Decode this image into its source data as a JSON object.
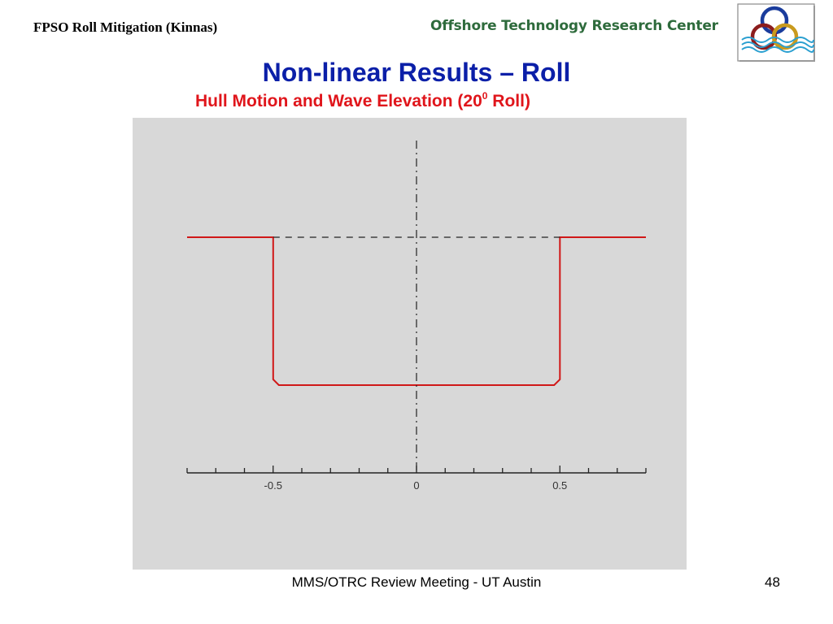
{
  "header": {
    "left_title": "FPSO Roll Mitigation (Kinnas)",
    "org_name": "Offshore Technology Research Center"
  },
  "slide": {
    "title": "Non-linear Results – Roll",
    "subtitle_pre": "Hull Motion and Wave Elevation (20",
    "subtitle_sup": "0",
    "subtitle_post": " Roll)"
  },
  "footer": {
    "meeting": "MMS/OTRC Review Meeting - UT Austin",
    "page_number": "48"
  },
  "colors": {
    "title_blue": "#0b1fa8",
    "subtitle_red": "#e0151b",
    "org_green": "#2e6b3c",
    "plot_background": "#d8d8d8",
    "curve_red": "#d01818"
  },
  "chart_data": {
    "type": "line",
    "title": "",
    "xlabel": "",
    "ylabel": "",
    "xlim": [
      -0.8,
      0.8
    ],
    "ylim": [
      -1.6,
      0.9
    ],
    "x_ticks": [
      -0.5,
      0,
      0.5
    ],
    "x_tick_labels": [
      "-0.5",
      "0",
      "0.5"
    ],
    "minor_tick_step": 0.1,
    "grid": false,
    "legend": "none",
    "series": [
      {
        "style": "solid-red",
        "x": [
          -0.8,
          -0.5,
          -0.5,
          -0.48,
          0.48,
          0.5,
          0.5,
          0.8
        ],
        "y": [
          0,
          0,
          -0.5,
          -0.52,
          -0.52,
          -0.5,
          0,
          0
        ]
      },
      {
        "style": "dashed-black",
        "x": [
          -0.5,
          0.5
        ],
        "y": [
          0,
          0
        ]
      },
      {
        "style": "dashdot-black",
        "x": [
          0,
          0
        ],
        "y": [
          -0.82,
          0.35
        ]
      }
    ]
  }
}
